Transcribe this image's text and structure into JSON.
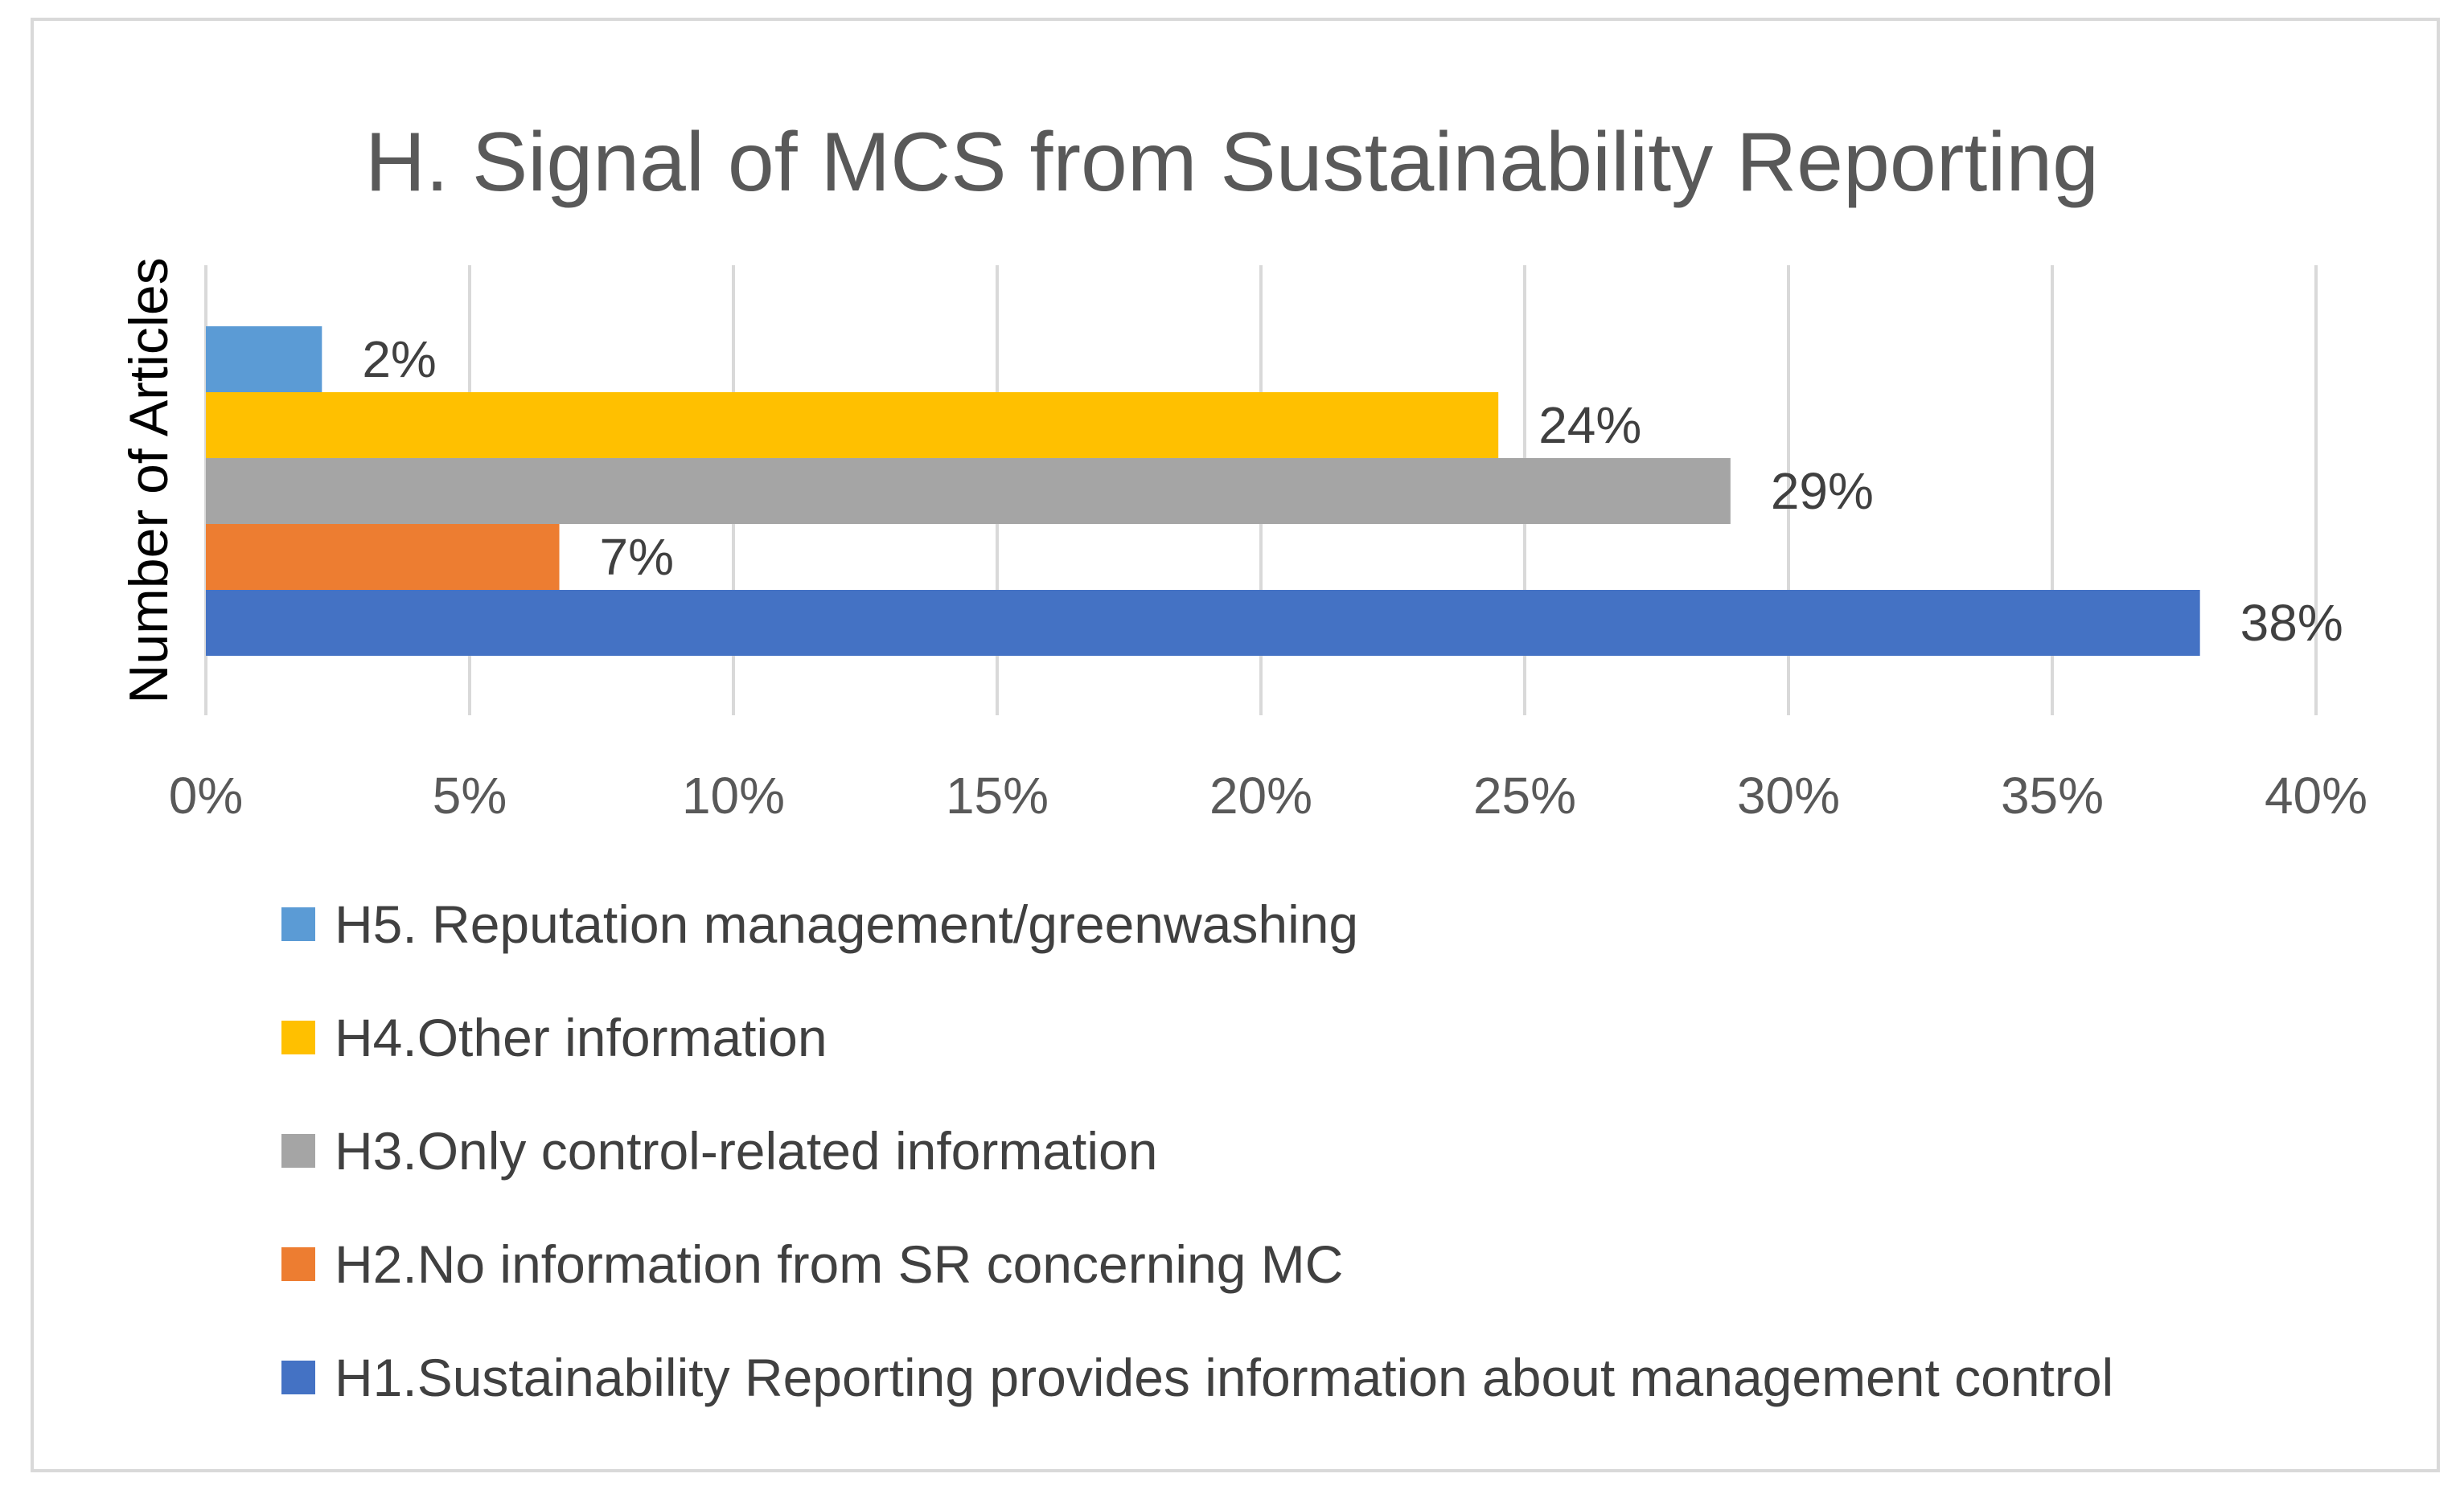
{
  "chart_data": {
    "type": "bar",
    "orientation": "horizontal",
    "title": "H. Signal of MCS from Sustainability Reporting",
    "ylabel": "Number of Articles",
    "xlabel": "",
    "xlim": [
      0,
      0.4
    ],
    "xticks": [
      0,
      0.05,
      0.1,
      0.15,
      0.2,
      0.25,
      0.3,
      0.35,
      0.4
    ],
    "xtick_labels": [
      "0%",
      "5%",
      "10%",
      "15%",
      "20%",
      "25%",
      "30%",
      "35%",
      "40%"
    ],
    "grid": "vertical",
    "legend_position": "bottom",
    "series": [
      {
        "name": "H5. Reputation management/greenwashing",
        "value": 0.022,
        "label": "2%",
        "color": "#5B9BD5"
      },
      {
        "name": "H4.Other information",
        "value": 0.245,
        "label": "24%",
        "color": "#FFC000"
      },
      {
        "name": "H3.Only control-related information",
        "value": 0.289,
        "label": "29%",
        "color": "#A5A5A5"
      },
      {
        "name": "H2.No information from SR concerning MC",
        "value": 0.067,
        "label": "7%",
        "color": "#ED7D31"
      },
      {
        "name": "H1.Sustainability Reporting provides information about management control",
        "value": 0.378,
        "label": "38%",
        "color": "#4472C4"
      }
    ]
  }
}
